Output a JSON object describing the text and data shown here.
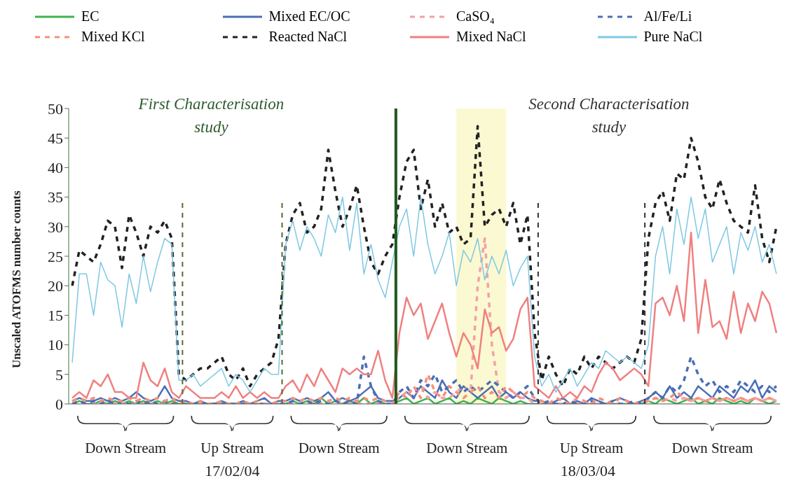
{
  "chart_data": {
    "type": "line",
    "ylabel": "Unscaled ATOFMS number counts",
    "ylim": [
      0,
      50
    ],
    "yticks": [
      0,
      5,
      10,
      15,
      20,
      25,
      30,
      35,
      40,
      45,
      50
    ],
    "legend": "top",
    "marker": "none",
    "categories": [
      null,
      null,
      null,
      null,
      null,
      null,
      null,
      null,
      null,
      null,
      null,
      null,
      null,
      null,
      null,
      null,
      null,
      null,
      null,
      null,
      null,
      null,
      null,
      null,
      null,
      null,
      null,
      null,
      null,
      null,
      null,
      null,
      null,
      null,
      null,
      null,
      null,
      null,
      null,
      null,
      null,
      null,
      null,
      null,
      null,
      null,
      null,
      null,
      null,
      null,
      null,
      null,
      null,
      null,
      null,
      null,
      null,
      null,
      null,
      null,
      null,
      null,
      null,
      null,
      null,
      null,
      null,
      null,
      null,
      null,
      null,
      null,
      null,
      null,
      null,
      null,
      null,
      null,
      null,
      null,
      null,
      null,
      null,
      null,
      null,
      null,
      null,
      null,
      null,
      null,
      null,
      null,
      null,
      null,
      null,
      null,
      null,
      null,
      null,
      null
    ],
    "series": [
      {
        "name": "EC",
        "color": "#3cb44b",
        "line_style": "solid",
        "values": [
          0,
          0.5,
          0,
          0,
          0.5,
          0,
          0.5,
          0,
          0.5,
          0,
          0.5,
          0,
          0.5,
          0,
          0.5,
          0,
          0,
          0,
          0,
          0,
          0,
          0,
          0,
          0,
          0,
          0,
          0,
          0,
          0,
          0,
          0,
          0.5,
          0,
          0.5,
          0,
          1,
          0,
          0.5,
          0,
          0.5,
          0,
          1,
          0,
          0.5,
          0,
          0,
          0.5,
          1,
          0,
          0.5,
          1,
          0,
          0.5,
          1,
          0,
          0.5,
          0,
          1,
          0.5,
          0,
          1,
          0.5,
          0,
          0.5,
          0,
          0,
          0,
          0,
          0,
          0,
          0,
          0,
          0,
          0,
          0,
          0,
          0,
          0,
          0,
          0,
          0,
          0.5,
          0,
          1,
          0.5,
          0,
          0.5,
          1,
          0,
          0.5,
          0,
          1,
          0.5,
          0,
          0.5,
          0,
          1,
          0.5,
          0,
          0.5
        ]
      },
      {
        "name": "Mixed EC/OC",
        "color": "#4a6fb5",
        "line_style": "solid",
        "values": [
          0.5,
          1,
          0.5,
          0.5,
          1,
          0.5,
          1,
          0.5,
          1,
          2,
          1,
          0.5,
          1,
          3,
          1,
          0.5,
          0.5,
          0,
          0.5,
          0,
          0,
          0.5,
          0,
          0,
          0.5,
          0,
          0.5,
          1,
          0,
          0.5,
          0.5,
          1,
          0.5,
          1,
          0.5,
          1,
          2,
          0.5,
          1,
          0.5,
          1,
          2,
          3,
          1,
          0.5,
          0.5,
          1,
          2,
          1,
          3,
          2,
          1,
          4,
          2,
          1,
          3,
          2,
          1,
          2,
          3,
          1,
          2,
          1,
          2,
          1,
          0.5,
          0.5,
          0,
          0.5,
          1,
          0,
          0.5,
          0,
          1,
          0.5,
          0,
          0.5,
          1,
          0.5,
          0,
          0.5,
          1,
          2,
          1,
          3,
          1,
          2,
          1,
          3,
          2,
          1,
          3,
          2,
          1,
          3,
          2,
          4,
          1,
          3,
          2
        ]
      },
      {
        "name": "CaSO₄",
        "color": "#f4a0a8",
        "line_style": "dashed",
        "values": [
          0,
          0,
          0,
          0,
          0,
          0,
          0,
          0,
          0,
          0,
          0,
          0,
          0,
          0,
          0,
          0,
          0,
          0,
          0,
          0,
          0,
          0,
          0,
          0,
          0,
          0,
          0,
          0,
          0,
          0,
          0,
          0,
          0,
          0,
          0,
          0,
          0,
          0,
          0,
          0,
          0,
          0,
          0,
          0,
          0,
          0,
          1,
          2,
          1,
          3,
          1,
          2,
          1,
          1,
          2,
          3,
          2,
          20,
          28,
          10,
          2,
          1,
          2,
          1,
          1,
          0,
          0,
          0,
          0,
          0,
          0,
          0,
          0,
          0,
          0,
          0,
          0,
          0,
          0,
          0,
          0,
          0.5,
          1,
          0.5,
          1,
          0.5,
          1,
          0.5,
          1,
          0.5,
          1,
          0.5,
          1,
          0.5,
          1,
          0.5,
          1,
          0.5,
          1,
          0.5
        ]
      },
      {
        "name": "Al/Fe/Li",
        "color": "#4a6fb5",
        "line_style": "dashed",
        "values": [
          0,
          0.5,
          0,
          0.5,
          0,
          0.5,
          0,
          0.5,
          0,
          0.5,
          0,
          0.5,
          0,
          0.5,
          0,
          0,
          0,
          0,
          0,
          0,
          0,
          0,
          0,
          0,
          0,
          0,
          0,
          0,
          0,
          0,
          0,
          0.5,
          0,
          0.5,
          0,
          0.5,
          0,
          0.5,
          0,
          0.5,
          0,
          8,
          3,
          0.5,
          0,
          0,
          2,
          3,
          1,
          4,
          3,
          5,
          2,
          3,
          4,
          2,
          3,
          2,
          3,
          4,
          3,
          2,
          1,
          2,
          3,
          1,
          0,
          0.5,
          0,
          0,
          0.5,
          0,
          0,
          0.5,
          0,
          0,
          0.5,
          0,
          0,
          0.5,
          0,
          1,
          2,
          1,
          3,
          2,
          4,
          8,
          5,
          3,
          4,
          2,
          3,
          2,
          4,
          3,
          2,
          3,
          2,
          3
        ]
      },
      {
        "name": "Mixed KCl",
        "color": "#f4907a",
        "line_style": "dashed",
        "values": [
          0.5,
          1,
          0.5,
          1,
          0.5,
          1,
          0.5,
          0.5,
          1,
          0.5,
          1,
          0.5,
          1,
          0.5,
          1,
          0,
          0.5,
          0,
          0.5,
          0,
          0,
          0.5,
          0,
          0,
          0.5,
          0,
          0.5,
          0,
          0,
          0.5,
          0.5,
          1,
          0.5,
          1,
          0.5,
          1,
          0.5,
          1,
          0.5,
          1,
          0.5,
          1,
          0.5,
          1,
          0.5,
          0,
          2,
          1,
          3,
          1,
          5,
          2,
          1,
          3,
          2,
          1,
          2,
          3,
          1,
          2,
          1,
          3,
          2,
          1,
          2,
          1,
          0.5,
          0,
          1,
          0.5,
          0,
          1,
          0.5,
          0,
          1,
          0.5,
          0,
          1,
          0.5,
          0,
          0.5,
          0.5,
          1,
          0.5,
          1,
          2,
          1,
          0.5,
          1,
          0.5,
          1,
          0.5,
          1,
          0.5,
          1,
          0.5,
          1,
          0.5,
          1,
          0.5
        ]
      },
      {
        "name": "Reacted NaCl",
        "color": "#222222",
        "line_style": "dashed",
        "values": [
          20,
          26,
          25,
          24,
          27,
          31,
          30,
          23,
          32,
          29,
          25,
          30,
          29,
          31,
          28,
          5,
          4,
          5,
          6,
          6,
          7,
          8,
          5,
          4,
          6,
          3,
          5,
          6,
          7,
          11,
          27,
          32,
          34,
          29,
          30,
          33,
          43,
          36,
          30,
          33,
          37,
          30,
          24,
          22,
          25,
          27,
          35,
          41,
          43,
          33,
          38,
          30,
          34,
          29,
          30,
          27,
          28,
          47,
          30,
          32,
          33,
          30,
          34,
          27,
          32,
          12,
          4,
          8,
          5,
          3,
          6,
          5,
          8,
          6,
          8,
          7,
          6,
          7,
          8,
          7,
          11,
          28,
          34,
          36,
          31,
          39,
          38,
          45,
          41,
          35,
          33,
          38,
          34,
          31,
          30,
          29,
          37,
          28,
          24,
          30
        ]
      },
      {
        "name": "Mixed NaCl",
        "color": "#f08080",
        "line_style": "solid",
        "values": [
          1,
          2,
          1,
          4,
          3,
          5,
          2,
          2,
          1,
          1,
          7,
          4,
          3,
          6,
          2,
          1,
          3,
          2,
          1,
          1,
          1,
          2,
          1,
          3,
          1,
          2,
          1,
          2,
          1,
          1,
          3,
          4,
          2,
          5,
          3,
          6,
          4,
          2,
          6,
          5,
          6,
          5,
          5,
          9,
          4,
          1,
          12,
          18,
          15,
          17,
          11,
          14,
          17,
          12,
          8,
          12,
          10,
          6,
          16,
          12,
          13,
          9,
          11,
          16,
          18,
          3,
          2,
          1,
          3,
          1,
          2,
          1,
          3,
          2,
          5,
          7,
          6,
          4,
          5,
          6,
          5,
          3,
          17,
          18,
          15,
          20,
          14,
          29,
          12,
          21,
          13,
          14,
          11,
          19,
          12,
          17,
          14,
          19,
          17,
          12
        ]
      },
      {
        "name": "Pure NaCl",
        "color": "#7ec8e3",
        "line_style": "solid",
        "values": [
          7,
          22,
          22,
          15,
          24,
          21,
          20,
          13,
          22,
          17,
          25,
          19,
          24,
          28,
          27,
          4,
          4,
          5,
          3,
          4,
          5,
          6,
          3,
          5,
          4,
          2,
          4,
          6,
          5,
          5,
          27,
          31,
          26,
          30,
          28,
          25,
          32,
          29,
          35,
          26,
          34,
          22,
          27,
          21,
          18,
          24,
          30,
          33,
          25,
          35,
          27,
          22,
          25,
          29,
          20,
          26,
          24,
          28,
          21,
          25,
          22,
          26,
          20,
          23,
          25,
          8,
          3,
          5,
          2,
          4,
          6,
          3,
          5,
          7,
          6,
          9,
          8,
          7,
          8,
          7,
          6,
          10,
          25,
          30,
          22,
          33,
          27,
          35,
          28,
          33,
          24,
          27,
          30,
          22,
          29,
          26,
          30,
          24,
          27,
          22
        ]
      }
    ],
    "annotations": [
      "First Characterisation study",
      "Second Characterisation study",
      "Down Stream",
      "Up Stream",
      "Down Stream",
      "Down Stream",
      "Up Stream",
      "Down Stream",
      "17/02/04",
      "18/03/04"
    ]
  }
}
